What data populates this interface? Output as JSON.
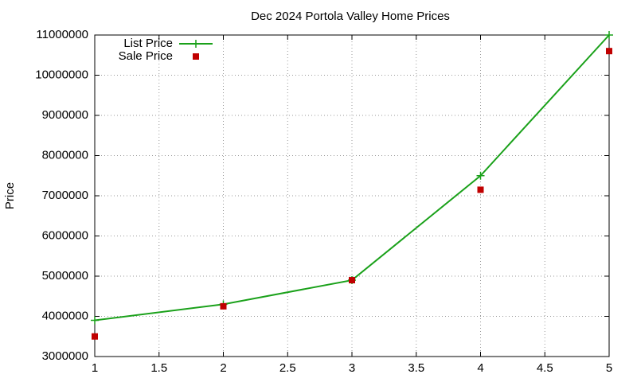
{
  "chart_data": {
    "type": "line",
    "title": "Dec 2024 Portola Valley Home Prices",
    "y_label": "Price",
    "x": [
      1,
      2,
      3,
      4,
      5
    ],
    "series": [
      {
        "name": "List Price",
        "color": "#1aa11a",
        "values": [
          3900000,
          4300000,
          4900000,
          7500000,
          11000000
        ],
        "line": true,
        "marker": "plus"
      },
      {
        "name": "Sale Price",
        "color": "#c00000",
        "values": [
          3500000,
          4250000,
          4900000,
          7150000,
          10600000
        ],
        "line": false,
        "marker": "square"
      }
    ],
    "xlim": [
      1,
      5
    ],
    "xticks": [
      1,
      1.5,
      2,
      2.5,
      3,
      3.5,
      4,
      4.5,
      5
    ],
    "ylim": [
      3000000,
      11000000
    ],
    "yticks": [
      3000000,
      4000000,
      5000000,
      6000000,
      7000000,
      8000000,
      9000000,
      10000000,
      11000000
    ],
    "grid": true,
    "legend": "top-left"
  }
}
